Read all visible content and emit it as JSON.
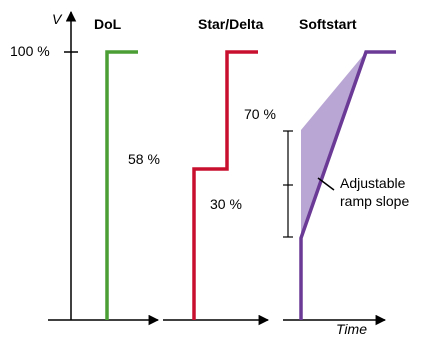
{
  "axis": {
    "y_label": "V",
    "x_label": "Time",
    "y_tick_label": "100 %"
  },
  "panels": [
    {
      "title": "DoL",
      "color": "#4a9e33",
      "annotations": [
        "58 %"
      ]
    },
    {
      "title": "Star/Delta",
      "color": "#c8102e",
      "annotations": [
        "30 %"
      ]
    },
    {
      "title": "Softstart",
      "color": "#6b3a96",
      "fill_color": "#b9a6d4",
      "annotations": [
        "70 %",
        "Adjustable",
        "ramp slope"
      ]
    }
  ]
}
